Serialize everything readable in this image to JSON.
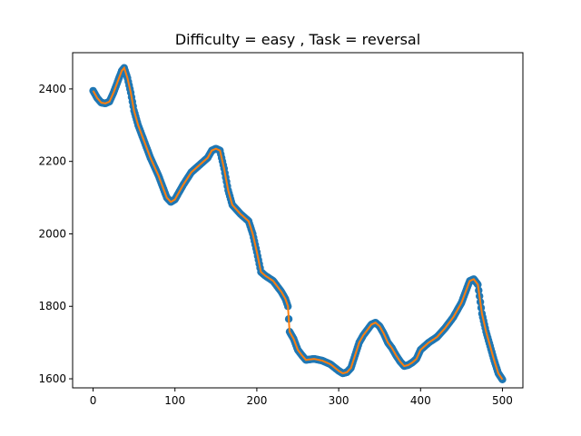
{
  "chart_data": {
    "type": "scatter",
    "title": "Difficulty = easy , Task = reversal",
    "xlabel": "",
    "ylabel": "",
    "xlim": [
      -25,
      525
    ],
    "ylim": [
      1575,
      2500
    ],
    "x_ticks": [
      0,
      100,
      200,
      300,
      400,
      500
    ],
    "y_ticks": [
      1600,
      1800,
      2000,
      2200,
      2400
    ],
    "grid": false,
    "legend": "none",
    "colors": {
      "scatter": "#1f77b4",
      "line": "#ff7f0e"
    },
    "series": [
      {
        "kind": "scatter+line",
        "points": [
          [
            0,
            2395
          ],
          [
            5,
            2375
          ],
          [
            10,
            2362
          ],
          [
            15,
            2360
          ],
          [
            20,
            2365
          ],
          [
            25,
            2390
          ],
          [
            30,
            2420
          ],
          [
            35,
            2450
          ],
          [
            38,
            2458
          ],
          [
            42,
            2430
          ],
          [
            46,
            2390
          ],
          [
            50,
            2340
          ],
          [
            55,
            2300
          ],
          [
            60,
            2270
          ],
          [
            65,
            2240
          ],
          [
            70,
            2210
          ],
          [
            75,
            2185
          ],
          [
            80,
            2160
          ],
          [
            85,
            2130
          ],
          [
            90,
            2100
          ],
          [
            95,
            2088
          ],
          [
            100,
            2095
          ],
          [
            110,
            2135
          ],
          [
            120,
            2170
          ],
          [
            130,
            2190
          ],
          [
            140,
            2210
          ],
          [
            145,
            2230
          ],
          [
            150,
            2235
          ],
          [
            155,
            2230
          ],
          [
            160,
            2180
          ],
          [
            165,
            2120
          ],
          [
            170,
            2080
          ],
          [
            180,
            2055
          ],
          [
            190,
            2035
          ],
          [
            195,
            2000
          ],
          [
            200,
            1950
          ],
          [
            205,
            1895
          ],
          [
            210,
            1885
          ],
          [
            220,
            1870
          ],
          [
            230,
            1840
          ],
          [
            235,
            1820
          ],
          [
            238,
            1800
          ],
          [
            240,
            1730
          ],
          [
            245,
            1710
          ],
          [
            250,
            1680
          ],
          [
            255,
            1665
          ],
          [
            260,
            1652
          ],
          [
            270,
            1655
          ],
          [
            280,
            1650
          ],
          [
            290,
            1640
          ],
          [
            300,
            1622
          ],
          [
            305,
            1615
          ],
          [
            310,
            1618
          ],
          [
            315,
            1630
          ],
          [
            320,
            1665
          ],
          [
            325,
            1700
          ],
          [
            330,
            1720
          ],
          [
            340,
            1750
          ],
          [
            345,
            1755
          ],
          [
            350,
            1745
          ],
          [
            355,
            1725
          ],
          [
            360,
            1700
          ],
          [
            365,
            1685
          ],
          [
            370,
            1665
          ],
          [
            375,
            1648
          ],
          [
            380,
            1635
          ],
          [
            385,
            1638
          ],
          [
            390,
            1645
          ],
          [
            395,
            1655
          ],
          [
            400,
            1680
          ],
          [
            410,
            1700
          ],
          [
            420,
            1715
          ],
          [
            430,
            1740
          ],
          [
            440,
            1770
          ],
          [
            450,
            1810
          ],
          [
            455,
            1840
          ],
          [
            460,
            1870
          ],
          [
            465,
            1875
          ],
          [
            470,
            1860
          ],
          [
            475,
            1780
          ],
          [
            480,
            1730
          ],
          [
            485,
            1690
          ],
          [
            490,
            1650
          ],
          [
            495,
            1615
          ],
          [
            500,
            1598
          ]
        ]
      }
    ]
  }
}
